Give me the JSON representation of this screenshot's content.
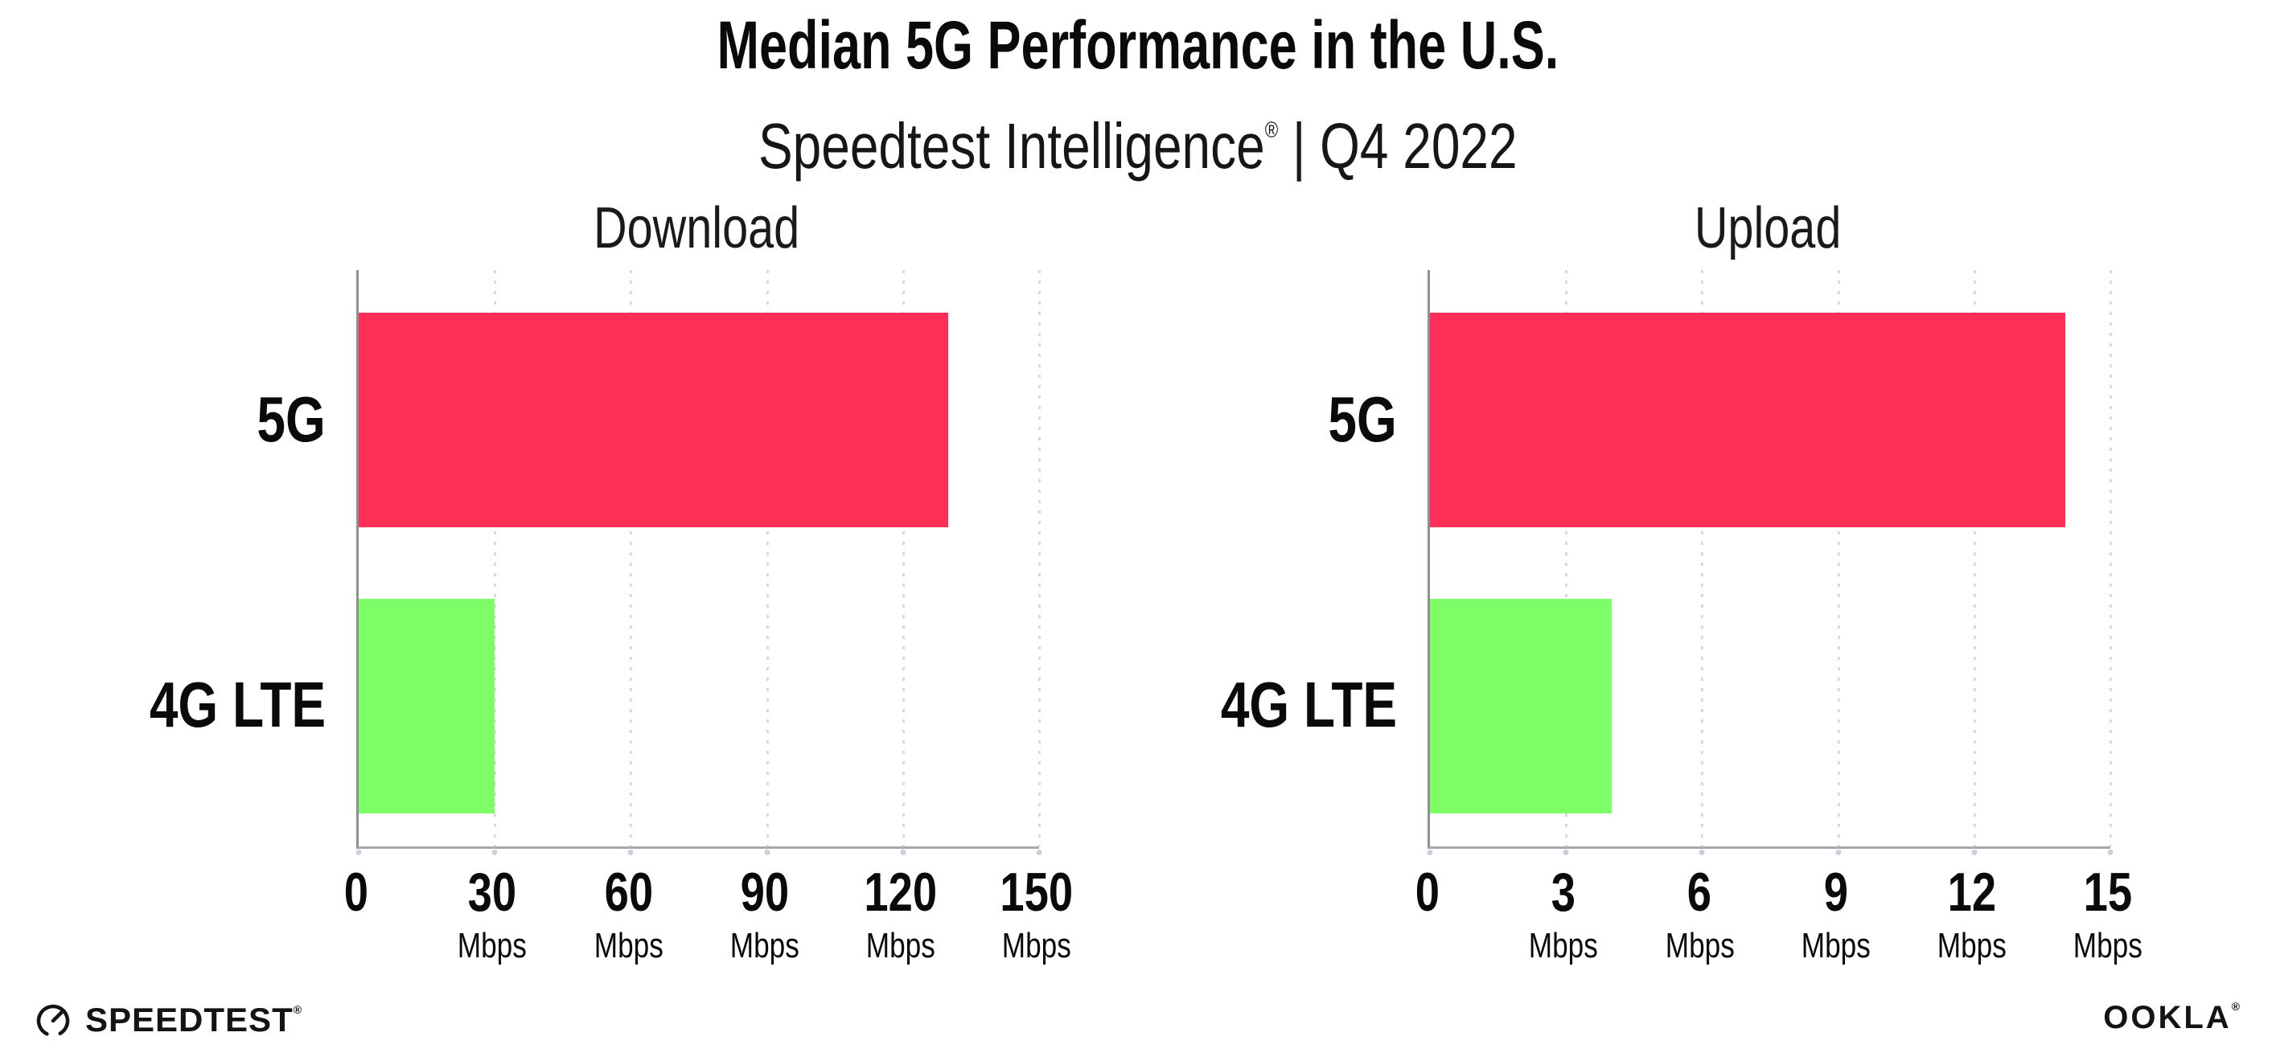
{
  "header": {
    "title": "Median 5G Performance in the U.S.",
    "subtitle_brand": "Speedtest Intelligence",
    "subtitle_reg": "®",
    "subtitle_sep": "|",
    "subtitle_period": "Q4 2022"
  },
  "chart_data": [
    {
      "type": "bar",
      "orientation": "horizontal",
      "title": "Download",
      "categories": [
        "5G",
        "4G LTE"
      ],
      "values": [
        130,
        30
      ],
      "unit": "Mbps",
      "xlabel": "",
      "ylabel": "",
      "xlim": [
        0,
        150
      ],
      "xticks": [
        0,
        30,
        60,
        90,
        120,
        150
      ],
      "bar_colors": [
        "#FF2E56",
        "#7DFD66"
      ],
      "grid": "vertical-dotted",
      "legend": "none"
    },
    {
      "type": "bar",
      "orientation": "horizontal",
      "title": "Upload",
      "categories": [
        "5G",
        "4G LTE"
      ],
      "values": [
        14,
        4
      ],
      "unit": "Mbps",
      "xlabel": "",
      "ylabel": "",
      "xlim": [
        0,
        15
      ],
      "xticks": [
        0,
        3,
        6,
        9,
        12,
        15
      ],
      "bar_colors": [
        "#FF2E56",
        "#7DFD66"
      ],
      "grid": "vertical-dotted",
      "legend": "none"
    }
  ],
  "colors": {
    "bar_5g": "#FF2E56",
    "bar_4g_lte": "#7DFD66",
    "axis_y": "#8e8e96",
    "axis_x": "#a8a8b0",
    "gridline": "#d9d9e3",
    "text": "#0a0a0a",
    "background": "#ffffff"
  },
  "footer": {
    "speedtest_label": "SPEEDTEST",
    "speedtest_reg": "®",
    "ookla_label": "OOKLA",
    "ookla_reg": "®"
  }
}
